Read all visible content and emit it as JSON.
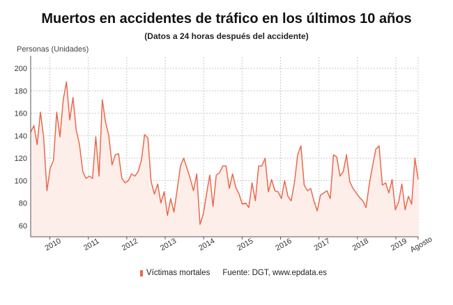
{
  "chart_data": {
    "type": "area",
    "title": "Muertos en accidentes de tráfico en los últimos 10 años",
    "subtitle": "(Datos a 24 horas después del accidente)",
    "ylabel": "Personas (Unidades)",
    "ylim": [
      50,
      210
    ],
    "yticks": [
      60,
      80,
      100,
      120,
      140,
      160,
      180,
      200
    ],
    "grid": true,
    "x_start": 2009.5,
    "x_end": 2019.58,
    "xtick_labels": [
      {
        "label": "2010",
        "x": 2010
      },
      {
        "label": "2011",
        "x": 2011
      },
      {
        "label": "2012",
        "x": 2012
      },
      {
        "label": "2013",
        "x": 2013
      },
      {
        "label": "2014",
        "x": 2014
      },
      {
        "label": "2015",
        "x": 2015
      },
      {
        "label": "2016",
        "x": 2016
      },
      {
        "label": "2017",
        "x": 2017
      },
      {
        "label": "2018",
        "x": 2018
      },
      {
        "label": "2019",
        "x": 2019
      },
      {
        "label": "Agosto",
        "x": 2019.58
      }
    ],
    "series": [
      {
        "name": "Víctimas mortales",
        "color": "#e8694b",
        "fill": "#fdeeea",
        "values": [
          143,
          149,
          132,
          161,
          138,
          91,
          111,
          118,
          161,
          139,
          172,
          188,
          154,
          174,
          145,
          132,
          108,
          102,
          104,
          102,
          139,
          104,
          172,
          152,
          140,
          114,
          123,
          124,
          102,
          98,
          100,
          106,
          104,
          108,
          118,
          141,
          138,
          99,
          88,
          97,
          80,
          90,
          69,
          84,
          72,
          92,
          113,
          120,
          111,
          102,
          91,
          106,
          61,
          70,
          88,
          105,
          77,
          105,
          107,
          113,
          113,
          93,
          106,
          94,
          88,
          79,
          80,
          76,
          98,
          82,
          113,
          113,
          120,
          90,
          101,
          91,
          90,
          84,
          100,
          86,
          82,
          98,
          123,
          131,
          96,
          91,
          93,
          82,
          73,
          87,
          89,
          91,
          84,
          123,
          121,
          104,
          108,
          123,
          99,
          93,
          89,
          85,
          82,
          76,
          97,
          113,
          128,
          131,
          96,
          98,
          89,
          101,
          74,
          81,
          97,
          74,
          86,
          79,
          120,
          101
        ]
      }
    ],
    "legend": {
      "label": "Víctimas mortales",
      "position": "bottom"
    },
    "source": "Fuente: DGT, www.epdata.es"
  }
}
